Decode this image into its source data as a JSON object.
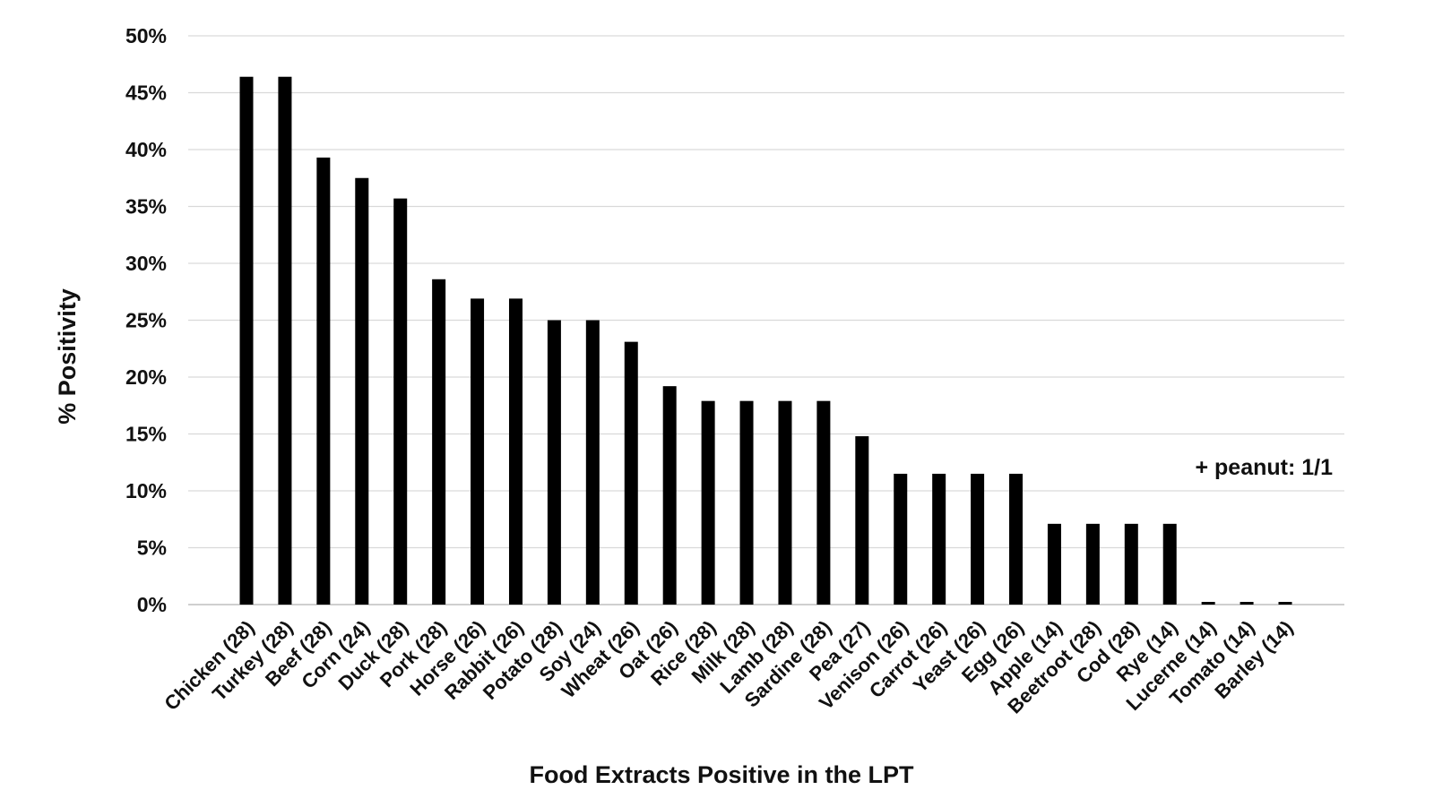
{
  "chart_data": {
    "type": "bar",
    "title": "",
    "xlabel": "Food Extracts Positive in the LPT",
    "ylabel": "% Positivity",
    "ylim": [
      0,
      50
    ],
    "yticks": [
      "0%",
      "5%",
      "10%",
      "15%",
      "20%",
      "25%",
      "30%",
      "35%",
      "40%",
      "45%",
      "50%"
    ],
    "grid": true,
    "annotation": "+ peanut: 1/1",
    "bar_color": "#000000",
    "categories": [
      "Chicken (28)",
      "Turkey (28)",
      "Beef (28)",
      "Corn (24)",
      "Duck (28)",
      "Pork (28)",
      "Horse (26)",
      "Rabbit (26)",
      "Potato (28)",
      "Soy (24)",
      "Wheat (26)",
      "Oat (26)",
      "Rice (28)",
      "Milk (28)",
      "Lamb (28)",
      "Sardine (28)",
      "Pea (27)",
      "Venison (26)",
      "Carrot (26)",
      "Yeast (26)",
      "Egg (26)",
      "Apple (14)",
      "Beetroot (28)",
      "Cod (28)",
      "Rye (14)",
      "Lucerne (14)",
      "Tomato (14)",
      "Barley (14)"
    ],
    "values": [
      46.4,
      46.4,
      39.3,
      37.5,
      35.7,
      28.6,
      26.9,
      26.9,
      25.0,
      25.0,
      23.1,
      19.2,
      17.9,
      17.9,
      17.9,
      17.9,
      14.8,
      11.5,
      11.5,
      11.5,
      11.5,
      7.1,
      7.1,
      7.1,
      7.1,
      0,
      0,
      0
    ]
  }
}
